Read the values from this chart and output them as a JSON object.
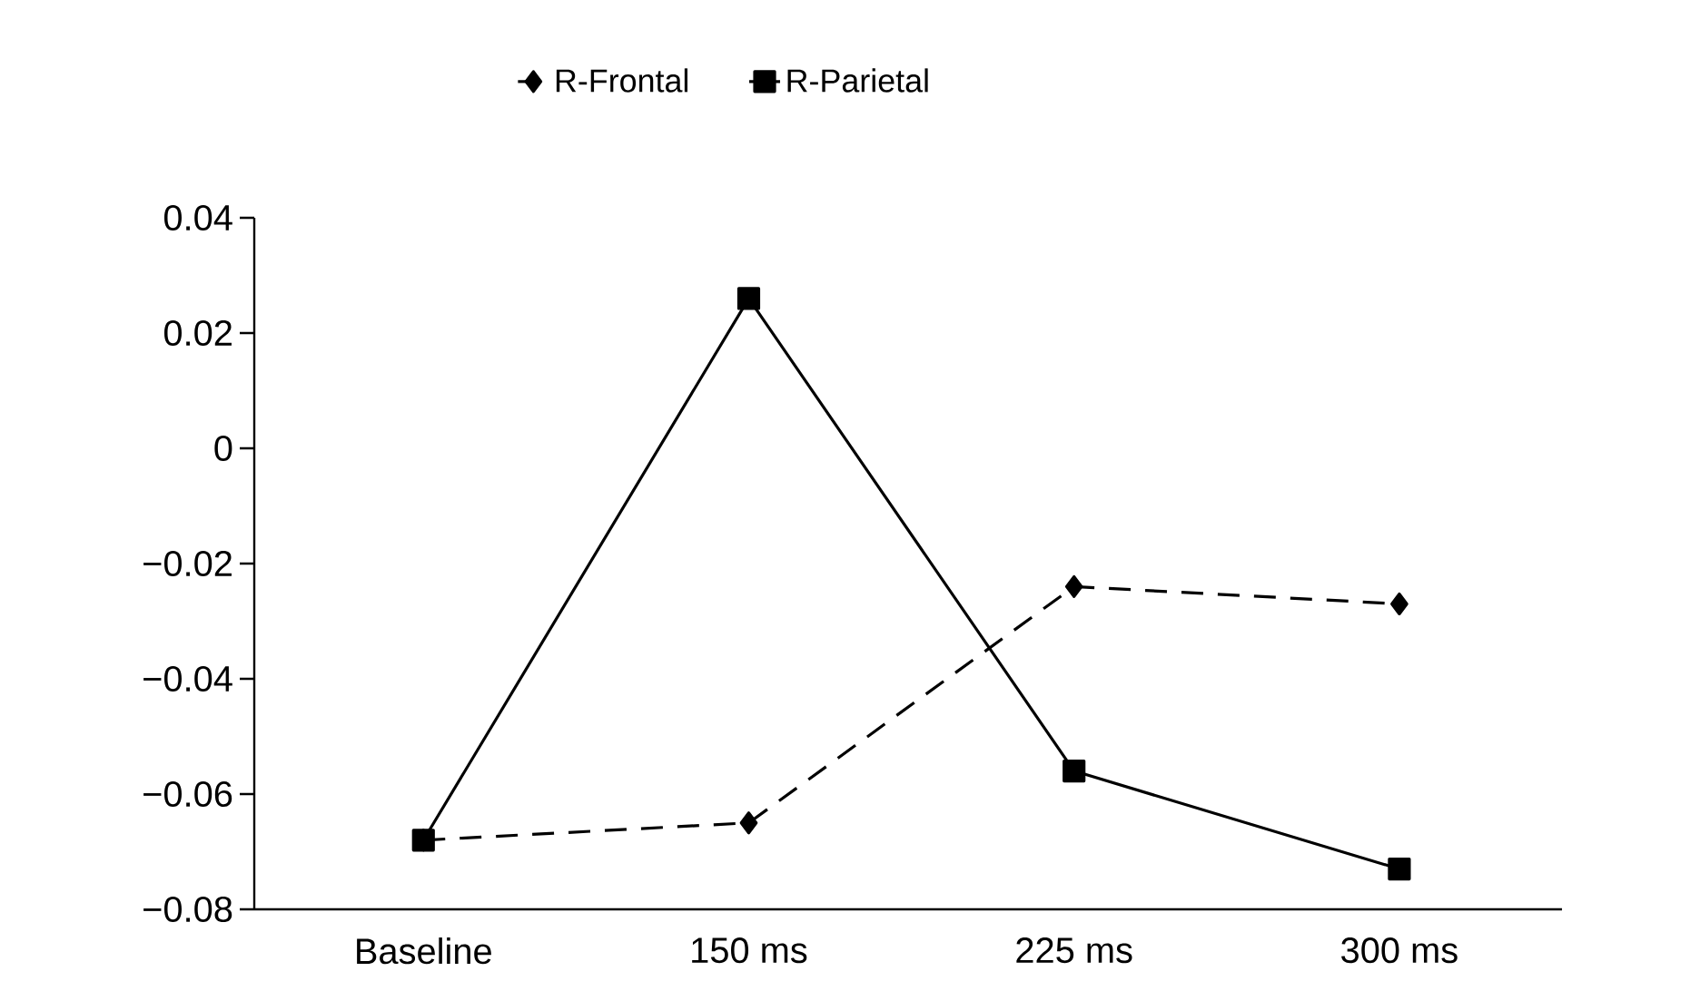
{
  "chart_data": {
    "type": "line",
    "categories": [
      "Baseline",
      "150 ms",
      "225 ms",
      "300 ms"
    ],
    "series": [
      {
        "name": "R-Frontal",
        "color": "#000000",
        "marker": "diamond",
        "line_style": "dashed",
        "values": [
          -0.068,
          -0.065,
          -0.024,
          -0.027
        ]
      },
      {
        "name": "R-Parietal",
        "color": "#000000",
        "marker": "square",
        "line_style": "solid",
        "values": [
          -0.068,
          0.026,
          -0.056,
          -0.073
        ]
      }
    ],
    "ylim": [
      -0.08,
      0.04
    ],
    "yticks": [
      0.04,
      0.02,
      0,
      {
        "value": -0.02,
        "label": "−0.02"
      },
      {
        "value": -0.04,
        "label": "−0.04"
      },
      {
        "value": -0.06,
        "label": "−0.06"
      },
      {
        "value": -0.08,
        "label": "−0.08"
      }
    ],
    "grid": false,
    "legend": "top"
  }
}
